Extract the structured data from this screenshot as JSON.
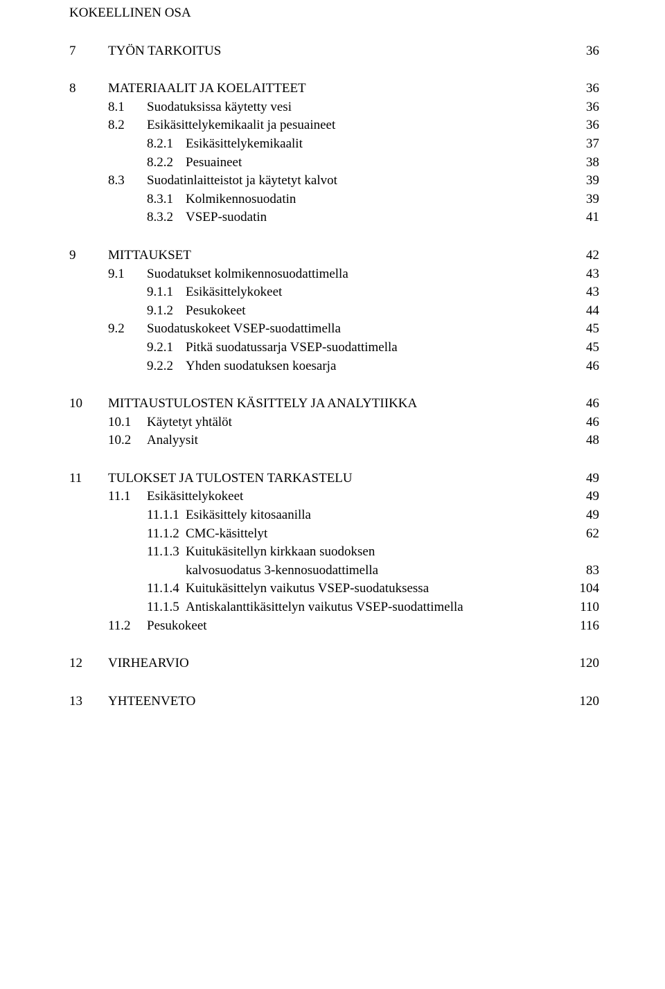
{
  "partTitle": "KOKEELLINEN OSA",
  "sections": [
    {
      "entries": [
        {
          "level": 0,
          "num": "7",
          "title": "TYÖN TARKOITUS",
          "page": "36"
        }
      ]
    },
    {
      "entries": [
        {
          "level": 0,
          "num": "8",
          "title": "MATERIAALIT JA KOELAITTEET",
          "page": "36"
        },
        {
          "level": 1,
          "num": "8.1",
          "title": "Suodatuksissa käytetty vesi",
          "page": "36"
        },
        {
          "level": 1,
          "num": "8.2",
          "title": "Esikäsittelykemikaalit ja pesuaineet",
          "page": "36"
        },
        {
          "level": 2,
          "num": "8.2.1",
          "title": "Esikäsittelykemikaalit",
          "page": "37"
        },
        {
          "level": 2,
          "num": "8.2.2",
          "title": "Pesuaineet",
          "page": "38"
        },
        {
          "level": 1,
          "num": "8.3",
          "title": "Suodatinlaitteistot ja käytetyt kalvot",
          "page": "39"
        },
        {
          "level": 2,
          "num": "8.3.1",
          "title": "Kolmikennosuodatin",
          "page": "39"
        },
        {
          "level": 2,
          "num": "8.3.2",
          "title": "VSEP-suodatin",
          "page": "41"
        }
      ]
    },
    {
      "entries": [
        {
          "level": 0,
          "num": "9",
          "title": "MITTAUKSET",
          "page": "42"
        },
        {
          "level": 1,
          "num": "9.1",
          "title": "Suodatukset kolmikennosuodattimella",
          "page": "43"
        },
        {
          "level": 2,
          "num": "9.1.1",
          "title": "Esikäsittelykokeet",
          "page": "43"
        },
        {
          "level": 2,
          "num": "9.1.2",
          "title": "Pesukokeet",
          "page": "44"
        },
        {
          "level": 1,
          "num": "9.2",
          "title": "Suodatuskokeet VSEP-suodattimella",
          "page": "45"
        },
        {
          "level": 2,
          "num": "9.2.1",
          "title": "Pitkä suodatussarja VSEP-suodattimella",
          "page": "45"
        },
        {
          "level": 2,
          "num": "9.2.2",
          "title": "Yhden suodatuksen koesarja",
          "page": "46"
        }
      ]
    },
    {
      "entries": [
        {
          "level": 0,
          "num": "10",
          "title": "MITTAUSTULOSTEN KÄSITTELY JA ANALYTIIKKA",
          "page": "46"
        },
        {
          "level": 1,
          "num": "10.1",
          "title": "Käytetyt yhtälöt",
          "page": "46"
        },
        {
          "level": 1,
          "num": "10.2",
          "title": "Analyysit",
          "page": "48"
        }
      ]
    },
    {
      "entries": [
        {
          "level": 0,
          "num": "11",
          "title": "TULOKSET JA TULOSTEN TARKASTELU",
          "page": "49"
        },
        {
          "level": 1,
          "num": "11.1",
          "title": "Esikäsittelykokeet",
          "page": "49"
        },
        {
          "level": 2,
          "num": "11.1.1",
          "title": "Esikäsittely kitosaanilla",
          "page": "49"
        },
        {
          "level": 2,
          "num": "11.1.2",
          "title": "CMC-käsittelyt",
          "page": "62"
        },
        {
          "level": 2,
          "num": "11.1.3",
          "title": "Kuitukäsitellyn kirkkaan suodoksen",
          "page": "",
          "cont": true,
          "contTitle": "kalvosuodatus 3-kennosuodattimella",
          "contPage": "83"
        },
        {
          "level": 2,
          "num": "11.1.4",
          "title": "Kuitukäsittelyn vaikutus VSEP-suodatuksessa",
          "page": "104"
        },
        {
          "level": 2,
          "num": "11.1.5",
          "title": "Antiskalanttikäsittelyn vaikutus VSEP-suodattimella",
          "page": "110"
        },
        {
          "level": 1,
          "num": "11.2",
          "title": "Pesukokeet",
          "page": "116"
        }
      ]
    },
    {
      "entries": [
        {
          "level": 0,
          "num": "12",
          "title": "VIRHEARVIO",
          "page": "120"
        }
      ]
    },
    {
      "entries": [
        {
          "level": 0,
          "num": "13",
          "title": "YHTEENVETO",
          "page": "120"
        }
      ]
    }
  ]
}
